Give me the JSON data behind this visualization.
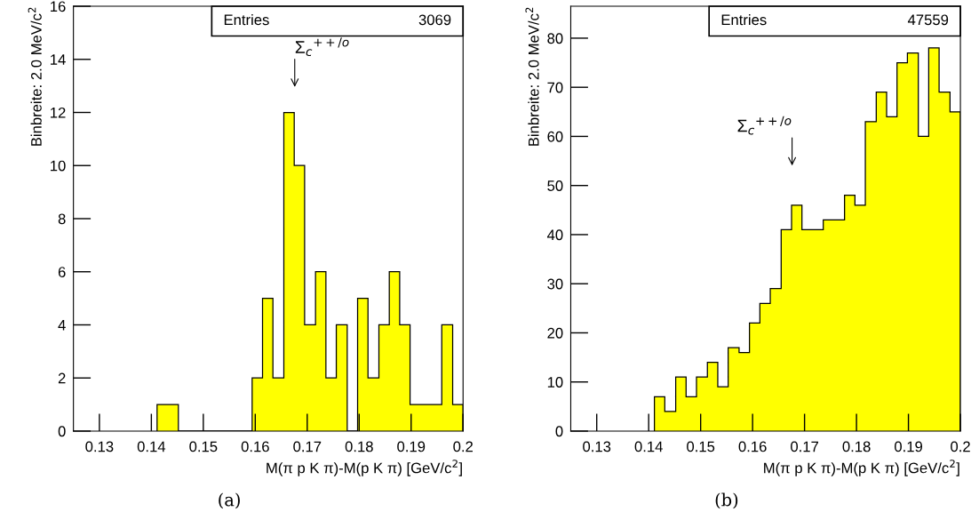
{
  "chart_data": [
    {
      "type": "histogram",
      "xlabel": "M(π p K π)-M(p K π) [GeV/c$^{2}$]",
      "ylabel": "Binbreite: 2.0 MeV/c$^{2}$",
      "bins": [
        0.1411,
        0.1431,
        0.1452,
        0.1472,
        0.1492,
        0.1513,
        0.1533,
        0.1553,
        0.1574,
        0.1594,
        0.1614,
        0.1634,
        0.1655,
        0.1675,
        0.1695,
        0.1716,
        0.1736,
        0.1756,
        0.1777,
        0.1797,
        0.1817,
        0.1838,
        0.1858,
        0.1878,
        0.1898,
        0.1919,
        0.1939,
        0.1959,
        0.198,
        0.2
      ],
      "values": [
        1,
        1,
        0,
        0,
        0,
        0,
        0,
        0,
        0,
        2,
        5,
        2,
        12,
        10,
        4,
        6,
        2,
        4,
        0,
        5,
        2,
        4,
        6,
        4,
        1,
        1,
        1,
        4,
        1
      ],
      "color": "#ffff00",
      "xlim": [
        0.125,
        0.2
      ],
      "xticks": [
        0.13,
        0.14,
        0.15,
        0.16,
        0.17,
        0.18,
        0.19,
        0.2
      ],
      "ylim": [
        0,
        16
      ],
      "yticks": [
        0,
        2,
        4,
        6,
        8,
        10,
        12,
        14,
        16
      ],
      "grid": false,
      "legend": false,
      "annotations": [
        "Entries",
        "3069",
        "(a)",
        "Σ$_{c}$$^{++/o}$"
      ]
    },
    {
      "type": "histogram",
      "xlabel": "M(π p K π)-M(p K π) [GeV/c$^{2}$]",
      "ylabel": "Binbreite: 2.0 MeV/c$^{2}$",
      "bins": [
        0.1411,
        0.1431,
        0.1452,
        0.1472,
        0.1492,
        0.1513,
        0.1533,
        0.1553,
        0.1574,
        0.1594,
        0.1614,
        0.1634,
        0.1655,
        0.1675,
        0.1695,
        0.1716,
        0.1736,
        0.1756,
        0.1777,
        0.1797,
        0.1817,
        0.1838,
        0.1858,
        0.1878,
        0.1898,
        0.1919,
        0.1939,
        0.1959,
        0.198,
        0.2
      ],
      "values": [
        7,
        4,
        11,
        7,
        11,
        14,
        9,
        17,
        16,
        22,
        26,
        29,
        41,
        46,
        41,
        41,
        43,
        43,
        48,
        46,
        63,
        69,
        64,
        75,
        77,
        60,
        78,
        69,
        65
      ],
      "color": "#ffff00",
      "xlim": [
        0.125,
        0.2
      ],
      "xticks": [
        0.13,
        0.14,
        0.15,
        0.16,
        0.17,
        0.18,
        0.19,
        0.2
      ],
      "ylim": [
        0,
        86.5
      ],
      "yticks": [
        0,
        10,
        20,
        30,
        40,
        50,
        60,
        70,
        80
      ],
      "grid": false,
      "legend": false,
      "annotations": [
        "Entries",
        "47559",
        "(b)",
        "Σ$_{c}$$^{++/o}$"
      ]
    }
  ]
}
